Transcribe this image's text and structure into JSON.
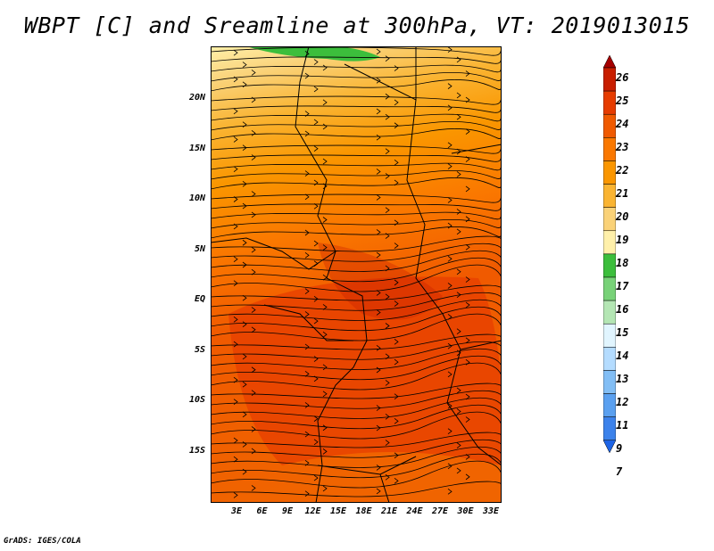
{
  "title": "WBPT [C] and Sreamline at 300hPa, VT: 2019013015",
  "credit": "GrADS: IGES/COLA",
  "map": {
    "lat_labels": [
      "20N",
      "15N",
      "10N",
      "5N",
      "EQ",
      "5S",
      "10S",
      "15S"
    ],
    "lon_labels": [
      "3E",
      "6E",
      "9E",
      "12E",
      "15E",
      "18E",
      "21E",
      "24E",
      "27E",
      "30E",
      "33E"
    ]
  },
  "colorbar": {
    "levels": [
      "26",
      "25",
      "24",
      "23",
      "22",
      "21",
      "20",
      "19",
      "18",
      "17",
      "16",
      "15",
      "14",
      "13",
      "12",
      "11",
      "9",
      "7"
    ],
    "colors": [
      "#a50000",
      "#c81e00",
      "#e63c00",
      "#f05a00",
      "#fa7800",
      "#fa9600",
      "#fab432",
      "#fad278",
      "#fff0aa",
      "#3cbe3c",
      "#78d278",
      "#b4e6b4",
      "#e1f5ff",
      "#b4dcff",
      "#82bef5",
      "#5aa0f0",
      "#3c82eb",
      "#1e64e6"
    ]
  }
}
